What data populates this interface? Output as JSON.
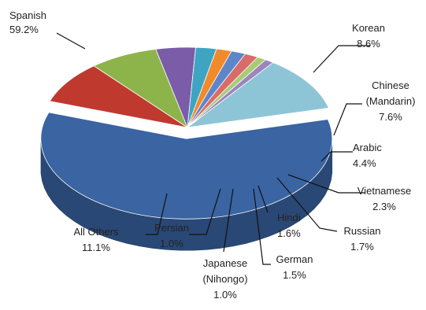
{
  "chart_data": {
    "type": "pie",
    "title": "",
    "slices": [
      {
        "label": "Spanish",
        "value": 59.2,
        "value_label": "59.2%",
        "color": "#3A64A2"
      },
      {
        "label": "Korean",
        "value": 8.6,
        "value_label": "8.6%",
        "color": "#C0392F"
      },
      {
        "label": "Chinese (Mandarin)",
        "value": 7.6,
        "value_label": "7.6%",
        "color": "#8DB44A"
      },
      {
        "label": "Arabic",
        "value": 4.4,
        "value_label": "4.4%",
        "color": "#7A5CA8"
      },
      {
        "label": "Vietnamese",
        "value": 2.3,
        "value_label": "2.3%",
        "color": "#3FA4C2"
      },
      {
        "label": "Russian",
        "value": 1.7,
        "value_label": "1.7%",
        "color": "#F08A2A"
      },
      {
        "label": "Hindi",
        "value": 1.6,
        "value_label": "1.6%",
        "color": "#5D86C9"
      },
      {
        "label": "German",
        "value": 1.5,
        "value_label": "1.5%",
        "color": "#D86C6A"
      },
      {
        "label": "Japanese (Nihongo)",
        "value": 1.0,
        "value_label": "1.0%",
        "color": "#A9CB76"
      },
      {
        "label": "Persian",
        "value": 1.0,
        "value_label": "1.0%",
        "color": "#9B86BE"
      },
      {
        "label": "All Others",
        "value": 11.1,
        "value_label": "11.1%",
        "color": "#8EC5D6"
      }
    ],
    "style": "3d-exploded",
    "legend": "none"
  }
}
